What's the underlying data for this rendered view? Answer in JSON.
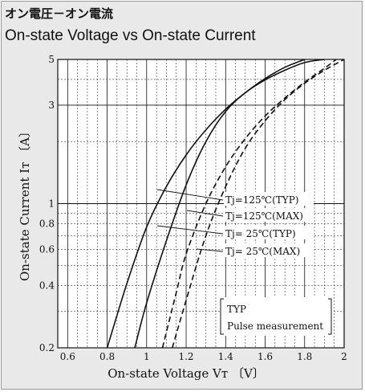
{
  "title_jp": "オン電圧－オン電流",
  "title_en": "On-state Voltage vs On-state Current",
  "chart_data": {
    "type": "line",
    "title": "On-state Voltage vs On-state Current",
    "xlabel": "On-state Voltage Vт 〔V〕",
    "ylabel": "On-state Current Iт 〔A〕",
    "xlim": [
      0.55,
      2.0
    ],
    "ylim": [
      0.2,
      5
    ],
    "y_scale": "log",
    "grid": true,
    "x_ticks": [
      {
        "value": 0.6,
        "label": "0.6"
      },
      {
        "value": 0.8,
        "label": "0.8"
      },
      {
        "value": 1.0,
        "label": "1"
      },
      {
        "value": 1.2,
        "label": "1.2"
      },
      {
        "value": 1.4,
        "label": "1.4"
      },
      {
        "value": 1.6,
        "label": "1.6"
      },
      {
        "value": 1.8,
        "label": "1.8"
      },
      {
        "value": 2.0,
        "label": "2"
      }
    ],
    "y_ticks": [
      {
        "value": 0.2,
        "label": "0.2"
      },
      {
        "value": 0.4,
        "label": "0.4"
      },
      {
        "value": 0.6,
        "label": "0.6"
      },
      {
        "value": 0.8,
        "label": "0.8"
      },
      {
        "value": 1,
        "label": "1"
      },
      {
        "value": 3,
        "label": "3"
      },
      {
        "value": 5,
        "label": "5"
      }
    ],
    "series": [
      {
        "name": "Tj=125℃(TYP)",
        "style": "solid",
        "x": [
          0.8,
          0.9,
          1.0,
          1.1,
          1.2,
          1.3,
          1.4,
          1.5,
          1.6,
          1.7,
          1.8
        ],
        "y": [
          0.2,
          0.41,
          0.77,
          1.21,
          1.72,
          2.28,
          2.87,
          3.45,
          4.04,
          4.58,
          5.0
        ]
      },
      {
        "name": "Tj=125℃(MAX)",
        "style": "dashed",
        "x": [
          1.08,
          1.15,
          1.2,
          1.3,
          1.4,
          1.5,
          1.6,
          1.7,
          1.8,
          1.9,
          1.96
        ],
        "y": [
          0.2,
          0.37,
          0.57,
          1.0,
          1.51,
          2.07,
          2.66,
          3.25,
          3.88,
          4.53,
          5.0
        ]
      },
      {
        "name": "Tj= 25℃(TYP)",
        "style": "solid",
        "x": [
          0.94,
          1.0,
          1.1,
          1.2,
          1.3,
          1.4,
          1.5,
          1.6,
          1.7,
          1.8,
          1.9
        ],
        "y": [
          0.2,
          0.33,
          0.66,
          1.23,
          2.0,
          2.8,
          3.45,
          3.98,
          4.43,
          4.83,
          5.0
        ]
      },
      {
        "name": "Tj= 25℃(MAX)",
        "style": "dashed",
        "x": [
          1.13,
          1.2,
          1.3,
          1.4,
          1.5,
          1.6,
          1.7,
          1.8,
          1.9,
          2.0
        ],
        "y": [
          0.2,
          0.34,
          0.7,
          1.21,
          1.86,
          2.52,
          3.19,
          3.83,
          4.43,
          5.0
        ]
      }
    ],
    "legend_labels": [
      "Tj=125℃(TYP)",
      "Tj=125℃(MAX)",
      "Tj= 25℃(TYP)",
      "Tj= 25℃(MAX)"
    ],
    "annotation": [
      "TYP",
      "Pulse measurement"
    ]
  }
}
